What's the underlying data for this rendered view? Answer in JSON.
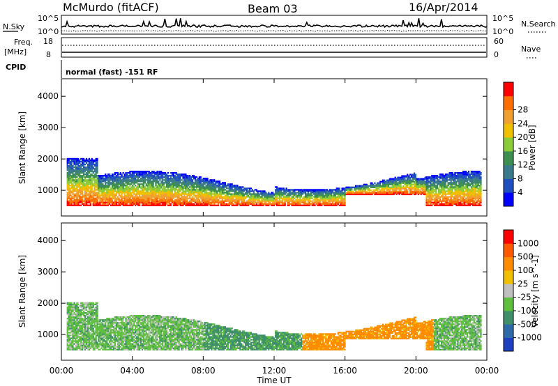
{
  "header": {
    "station": "McMurdo (fitACF)",
    "beam": "Beam 03",
    "date": "16/Apr/2014"
  },
  "top_panels": {
    "nsky_label": "N.Sky",
    "nsearch_label": "N.Search",
    "nsky_ticks": [
      "10^5",
      "10^0"
    ],
    "nsearch_ticks": [
      "10^5",
      "10^0"
    ],
    "freq_label_1": "Freq.",
    "freq_label_2": "[MHz]",
    "freq_ticks": [
      "18",
      "8"
    ],
    "nave_label": "Nave",
    "nave_ticks": [
      "60",
      "0"
    ],
    "cpid_label": "CPID",
    "cpid_text": "normal (fast) -151 RF"
  },
  "chart_data": [
    {
      "type": "heatmap",
      "name": "power",
      "ylabel": "Slant Range [km]",
      "xlabel": "Time UT",
      "x_ticks": [
        "00:00",
        "04:00",
        "08:00",
        "12:00",
        "16:00",
        "20:00",
        "00:00"
      ],
      "x_range_hours": [
        0,
        24
      ],
      "y_ticks": [
        "1000",
        "2000",
        "3000",
        "4000"
      ],
      "y_range_km": [
        180,
        4560
      ],
      "colorbar": {
        "label": "Power [dB]",
        "ticks": [
          "4",
          "8",
          "12",
          "16",
          "20",
          "24",
          "28"
        ],
        "range": [
          0,
          32
        ],
        "colors": [
          "#0000ff",
          "#1f4fbf",
          "#3a7a8a",
          "#3d8f4f",
          "#8ccc3a",
          "#f0c000",
          "#f0a030",
          "#ff6f00",
          "#ff0000"
        ]
      }
    },
    {
      "type": "heatmap",
      "name": "velocity",
      "ylabel": "Slant Range [km]",
      "xlabel": "Time UT",
      "x_ticks": [
        "00:00",
        "04:00",
        "08:00",
        "12:00",
        "16:00",
        "20:00",
        "00:00"
      ],
      "x_range_hours": [
        0,
        24
      ],
      "y_ticks": [
        "1000",
        "2000",
        "3000",
        "4000"
      ],
      "y_range_km": [
        180,
        4560
      ],
      "colorbar": {
        "label": "Velocity [m s^-1]",
        "ticks": [
          "1000",
          "500",
          "100",
          "25",
          "-25",
          "-100",
          "-500",
          "-1000"
        ],
        "colors": [
          "#1e3fbf",
          "#2f6aa8",
          "#3f8f6a",
          "#5fbf3f",
          "#c0c0c0",
          "#f0c000",
          "#ff8c00",
          "#ff5a00",
          "#ff0000"
        ]
      }
    }
  ]
}
